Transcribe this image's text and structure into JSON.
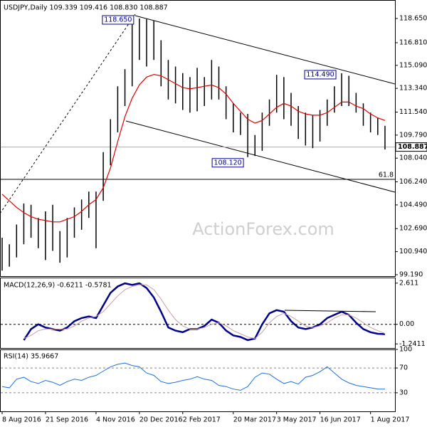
{
  "chart_data": [
    {
      "type": "range-bar",
      "title": "USDJPY,Daily  109.339 109.416 108.830 108.887",
      "watermark": "ActionForex.com",
      "categories": [
        "8 Aug 2016",
        null,
        null,
        null,
        null,
        null,
        "21 Sep 2016",
        null,
        null,
        null,
        null,
        null,
        null,
        "4 Nov 2016",
        null,
        null,
        null,
        null,
        null,
        "20 Dec 2016",
        null,
        null,
        null,
        null,
        null,
        "2 Feb 2017",
        null,
        null,
        null,
        null,
        null,
        null,
        "20 Mar 2017",
        null,
        null,
        null,
        null,
        null,
        "3 May 2017",
        null,
        null,
        null,
        null,
        null,
        "16 Jun 2017",
        null,
        null,
        null,
        null,
        null,
        null,
        "1 Aug 2017",
        null,
        null
      ],
      "color": "#000000",
      "high": {
        "values": [
          102.0,
          101.5,
          103.0,
          104.6,
          104.5,
          103.5,
          104.0,
          104.5,
          102.5,
          103.5,
          104.3,
          104.9,
          105.5,
          105.5,
          108.5,
          111.0,
          113.5,
          114.8,
          118.2,
          118.65,
          118.6,
          118.5,
          117.0,
          115.5,
          115.0,
          114.5,
          114.2,
          114.9,
          114.2,
          115.5,
          115.0,
          113.5,
          112.2,
          111.5,
          111.4,
          109.8,
          111.5,
          112.5,
          114.37,
          114.2,
          113.0,
          112.0,
          111.5,
          111.3,
          111.7,
          112.5,
          113.5,
          114.49,
          114.3,
          113.0,
          112.2,
          111.5,
          111.1,
          110.5
        ],
        "value_labels": [
          null,
          null,
          null,
          null,
          null,
          null,
          null,
          null,
          null,
          null,
          null,
          null,
          null,
          null,
          null,
          null,
          null,
          null,
          null,
          "118.650",
          null,
          null,
          null,
          null,
          null,
          null,
          null,
          null,
          null,
          null,
          null,
          null,
          null,
          null,
          null,
          null,
          null,
          null,
          null,
          null,
          null,
          null,
          null,
          null,
          null,
          null,
          null,
          "114.490",
          null,
          null,
          null,
          null,
          null,
          null
        ]
      },
      "low": {
        "values": [
          99.5,
          99.8,
          100.5,
          101.5,
          102.0,
          101.2,
          100.3,
          101.0,
          100.1,
          100.5,
          102.0,
          102.6,
          103.5,
          101.2,
          104.8,
          107.5,
          110.0,
          112.0,
          113.5,
          115.5,
          115.0,
          115.5,
          113.5,
          112.5,
          112.2,
          111.7,
          111.5,
          111.6,
          112.0,
          112.5,
          112.5,
          111.0,
          110.0,
          109.8,
          108.12,
          108.2,
          108.6,
          110.5,
          111.5,
          111.0,
          110.5,
          109.5,
          109.0,
          108.8,
          109.3,
          110.5,
          111.5,
          112.0,
          112.0,
          111.5,
          110.5,
          110.0,
          109.8,
          108.7
        ],
        "value_labels": [
          null,
          null,
          null,
          null,
          null,
          null,
          null,
          null,
          null,
          null,
          null,
          null,
          null,
          null,
          null,
          null,
          null,
          null,
          null,
          null,
          null,
          null,
          null,
          null,
          null,
          null,
          null,
          null,
          null,
          null,
          null,
          null,
          null,
          null,
          "108.120",
          null,
          null,
          null,
          null,
          null,
          null,
          null,
          null,
          null,
          null,
          null,
          null,
          null,
          null,
          null,
          null,
          null,
          null,
          null
        ]
      },
      "series": [
        {
          "color": "#e00000",
          "values": [
            105.3,
            104.8,
            104.3,
            103.9,
            103.6,
            103.4,
            103.3,
            103.2,
            103.2,
            103.4,
            103.6,
            104.0,
            104.5,
            104.9,
            105.8,
            107.3,
            109.3,
            111.2,
            112.6,
            113.6,
            114.2,
            114.4,
            114.3,
            114.0,
            113.7,
            113.4,
            113.3,
            113.4,
            113.5,
            113.6,
            113.4,
            112.9,
            112.2,
            111.6,
            111.0,
            110.7,
            110.9,
            111.4,
            111.9,
            112.2,
            112.0,
            111.6,
            111.4,
            111.3,
            111.3,
            111.5,
            111.9,
            112.3,
            112.3,
            112.0,
            111.8,
            111.4,
            111.1,
            110.9
          ]
        }
      ],
      "hlines": [
        {
          "value": 106.43,
          "label": "61.8"
        }
      ],
      "last": {
        "value": 108.887,
        "label": "108.887"
      },
      "ylim": [
        99.08,
        120.0
      ],
      "yticks": [
        {
          "value": 118.65,
          "label": "118.650"
        },
        {
          "value": 116.81,
          "label": "116.810"
        },
        {
          "value": 115.09,
          "label": "115.090"
        },
        {
          "value": 113.34,
          "label": "113.340"
        },
        {
          "value": 111.54,
          "label": "111.540"
        },
        {
          "value": 109.79,
          "label": "109.790"
        },
        {
          "value": 108.04,
          "label": "108.040"
        },
        {
          "value": 106.24,
          "label": "106.240"
        },
        {
          "value": 104.49,
          "label": "104.490"
        },
        {
          "value": 102.69,
          "label": "102.690"
        },
        {
          "value": 100.94,
          "label": "100.940"
        },
        {
          "value": 99.19,
          "label": "99.190"
        }
      ],
      "grid": false
    },
    {
      "type": "line",
      "title": "MACD(12,26,9) -0.6211 -0.5781",
      "series": [
        {
          "color": "#00008b",
          "width": 2.5,
          "values": [
            null,
            null,
            null,
            -1.0,
            -0.3,
            0.0,
            -0.2,
            -0.3,
            -0.4,
            -0.2,
            0.2,
            0.4,
            0.5,
            0.4,
            1.2,
            2.0,
            2.4,
            2.6,
            2.5,
            2.6,
            2.3,
            1.7,
            0.8,
            -0.2,
            -0.4,
            -0.5,
            -0.3,
            -0.3,
            -0.1,
            0.3,
            0.1,
            -0.4,
            -0.7,
            -0.8,
            -1.0,
            -0.9,
            0.0,
            0.7,
            0.9,
            0.8,
            0.2,
            -0.2,
            -0.3,
            -0.2,
            0.0,
            0.4,
            0.6,
            0.8,
            0.6,
            0.1,
            -0.3,
            -0.5,
            -0.6,
            -0.62
          ]
        },
        {
          "color": "#c9a3a3",
          "width": 1,
          "values": [
            null,
            null,
            null,
            -0.9,
            -0.7,
            -0.4,
            -0.3,
            -0.3,
            -0.3,
            -0.3,
            -0.1,
            0.2,
            0.4,
            0.5,
            0.8,
            1.3,
            1.8,
            2.2,
            2.4,
            2.5,
            2.5,
            2.2,
            1.6,
            0.9,
            0.3,
            -0.1,
            -0.3,
            -0.3,
            -0.2,
            0.0,
            0.1,
            -0.1,
            -0.4,
            -0.6,
            -0.8,
            -0.9,
            -0.5,
            0.1,
            0.5,
            0.7,
            0.5,
            0.2,
            -0.1,
            -0.2,
            -0.1,
            0.1,
            0.4,
            0.6,
            0.6,
            0.4,
            0.1,
            -0.2,
            -0.4,
            -0.58
          ]
        }
      ],
      "ylim": [
        -1.5,
        2.92
      ],
      "yticks": [
        2.611,
        {
          "value": 0,
          "label": "0.00"
        },
        -1.2411
      ],
      "zero_line": true
    },
    {
      "type": "line",
      "title": "RSI(14) 35.9667",
      "series": [
        {
          "color": "#1e6fd9",
          "width": 1,
          "values": [
            40,
            38,
            52,
            55,
            48,
            45,
            50,
            47,
            42,
            48,
            52,
            50,
            55,
            58,
            65,
            72,
            76,
            78,
            74,
            72,
            62,
            58,
            48,
            45,
            47,
            50,
            52,
            56,
            52,
            50,
            42,
            40,
            36,
            34,
            40,
            55,
            62,
            60,
            52,
            45,
            48,
            44,
            55,
            58,
            64,
            72,
            62,
            52,
            46,
            42,
            40,
            38,
            36,
            35.97
          ]
        }
      ],
      "ylim": [
        0,
        100
      ],
      "yticks": [
        100,
        70,
        30
      ],
      "grid": true
    }
  ]
}
